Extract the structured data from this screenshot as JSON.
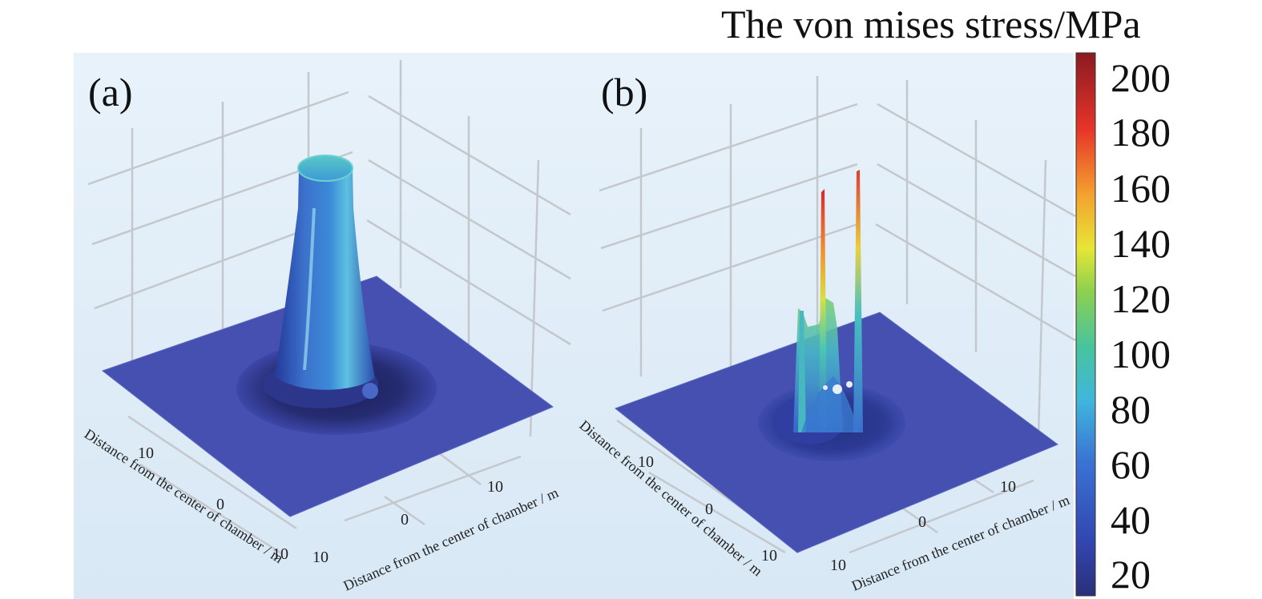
{
  "title": "The von mises stress/MPa",
  "chart_data": [
    {
      "type": "surface3d",
      "panel": "(a)",
      "xlabel": "Distance from the center of chamber / m",
      "ylabel": "Distance from the center of chamber / m",
      "x_ticks": [
        "0",
        "10"
      ],
      "y_ticks": [
        "10",
        "0",
        "10"
      ],
      "features": [
        {
          "shape": "central column",
          "approx_stress_mpa": 90
        },
        {
          "shape": "flat plane",
          "approx_stress_mpa": 40
        }
      ]
    },
    {
      "type": "surface3d",
      "panel": "(b)",
      "xlabel": "Distance from the center of chamber / m",
      "ylabel": "Distance from the center of chamber / m",
      "x_ticks": [
        "0",
        "10"
      ],
      "y_ticks": [
        "10",
        "0",
        "10"
      ],
      "features": [
        {
          "shape": "tall spike",
          "approx_stress_mpa": 200
        },
        {
          "shape": "tall spike",
          "approx_stress_mpa": 190
        },
        {
          "shape": "peak",
          "approx_stress_mpa": 110
        },
        {
          "shape": "flat plane",
          "approx_stress_mpa": 40
        }
      ]
    }
  ],
  "colorbar": {
    "ticks": [
      200,
      180,
      160,
      140,
      120,
      100,
      80,
      60,
      40,
      20
    ],
    "range": [
      10,
      210
    ],
    "colors": [
      "#2a2f7a",
      "#3a4fc0",
      "#3a86d8",
      "#41c0d8",
      "#4ec98a",
      "#a8d84a",
      "#f2e83a",
      "#f4a030",
      "#e83428",
      "#8a1a22"
    ]
  }
}
